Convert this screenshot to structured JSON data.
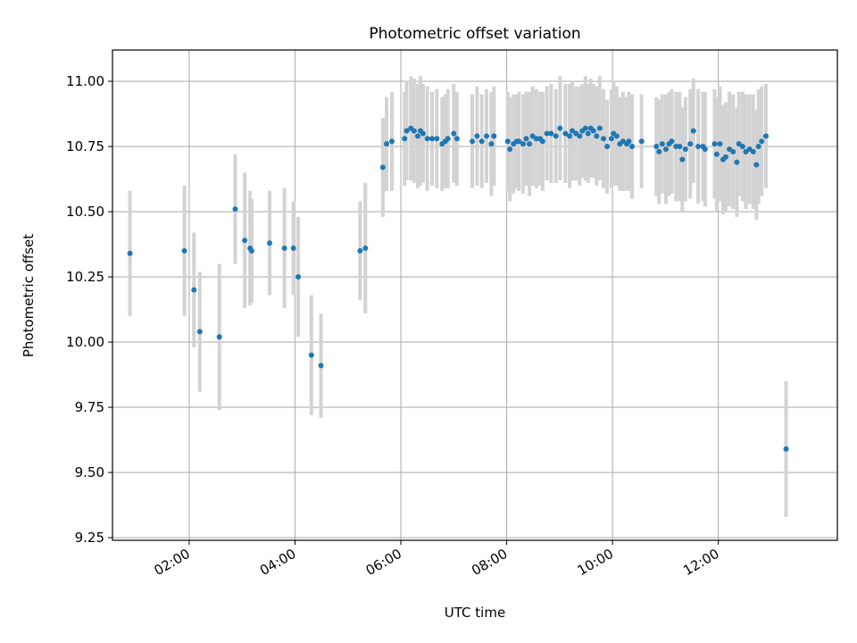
{
  "chart_data": {
    "type": "scatter",
    "title": "Photometric offset variation",
    "xlabel": "UTC time",
    "ylabel": "Photometric offset",
    "x_unit": "hours UTC",
    "xlim": [
      0.55,
      14.25
    ],
    "ylim": [
      9.24,
      11.12
    ],
    "x_ticks": [
      2,
      4,
      6,
      8,
      10,
      12
    ],
    "x_tick_labels": [
      "02:00",
      "04:00",
      "06:00",
      "08:00",
      "10:00",
      "12:00"
    ],
    "y_ticks": [
      9.25,
      9.5,
      9.75,
      10.0,
      10.25,
      10.5,
      10.75,
      11.0
    ],
    "y_tick_labels": [
      "9.25",
      "9.50",
      "9.75",
      "10.00",
      "10.25",
      "10.50",
      "10.75",
      "11.00"
    ],
    "grid": true,
    "colors": {
      "points": "#1f77b4",
      "errorbars": "#d3d3d3",
      "grid": "#b0b0b0"
    },
    "series": [
      {
        "columns": [
          "x",
          "y",
          "err"
        ],
        "points": [
          [
            0.88,
            10.34,
            0.24
          ],
          [
            1.91,
            10.35,
            0.25
          ],
          [
            2.09,
            10.2,
            0.22
          ],
          [
            2.2,
            10.04,
            0.23
          ],
          [
            2.57,
            10.02,
            0.28
          ],
          [
            2.87,
            10.51,
            0.21
          ],
          [
            3.05,
            10.39,
            0.26
          ],
          [
            3.15,
            10.36,
            0.22
          ],
          [
            3.18,
            10.35,
            0.2
          ],
          [
            3.52,
            10.38,
            0.2
          ],
          [
            3.8,
            10.36,
            0.23
          ],
          [
            3.97,
            10.36,
            0.18
          ],
          [
            4.06,
            10.25,
            0.23
          ],
          [
            4.31,
            9.95,
            0.23
          ],
          [
            4.49,
            9.91,
            0.2
          ],
          [
            5.23,
            10.35,
            0.19
          ],
          [
            5.33,
            10.36,
            0.25
          ],
          [
            5.66,
            10.67,
            0.19
          ],
          [
            5.73,
            10.76,
            0.18
          ],
          [
            5.83,
            10.77,
            0.19
          ],
          [
            6.07,
            10.78,
            0.18
          ],
          [
            6.11,
            10.81,
            0.19
          ],
          [
            6.19,
            10.82,
            0.2
          ],
          [
            6.25,
            10.81,
            0.2
          ],
          [
            6.32,
            10.79,
            0.2
          ],
          [
            6.37,
            10.81,
            0.21
          ],
          [
            6.42,
            10.8,
            0.19
          ],
          [
            6.5,
            10.78,
            0.2
          ],
          [
            6.59,
            10.78,
            0.18
          ],
          [
            6.68,
            10.78,
            0.19
          ],
          [
            6.78,
            10.76,
            0.18
          ],
          [
            6.84,
            10.77,
            0.18
          ],
          [
            6.89,
            10.78,
            0.19
          ],
          [
            7.0,
            10.8,
            0.19
          ],
          [
            7.06,
            10.78,
            0.18
          ],
          [
            7.35,
            10.77,
            0.18
          ],
          [
            7.44,
            10.79,
            0.19
          ],
          [
            7.53,
            10.77,
            0.18
          ],
          [
            7.62,
            10.79,
            0.18
          ],
          [
            7.71,
            10.76,
            0.2
          ],
          [
            7.76,
            10.79,
            0.19
          ],
          [
            8.02,
            10.77,
            0.19
          ],
          [
            8.06,
            10.74,
            0.2
          ],
          [
            8.13,
            10.76,
            0.19
          ],
          [
            8.19,
            10.77,
            0.18
          ],
          [
            8.23,
            10.77,
            0.19
          ],
          [
            8.31,
            10.76,
            0.19
          ],
          [
            8.37,
            10.78,
            0.18
          ],
          [
            8.43,
            10.76,
            0.2
          ],
          [
            8.49,
            10.79,
            0.19
          ],
          [
            8.56,
            10.78,
            0.19
          ],
          [
            8.63,
            10.78,
            0.18
          ],
          [
            8.68,
            10.77,
            0.19
          ],
          [
            8.76,
            10.8,
            0.18
          ],
          [
            8.84,
            10.8,
            0.19
          ],
          [
            8.93,
            10.79,
            0.18
          ],
          [
            9.01,
            10.82,
            0.2
          ],
          [
            9.11,
            10.8,
            0.19
          ],
          [
            9.19,
            10.79,
            0.2
          ],
          [
            9.24,
            10.81,
            0.19
          ],
          [
            9.31,
            10.8,
            0.18
          ],
          [
            9.38,
            10.79,
            0.19
          ],
          [
            9.43,
            10.81,
            0.18
          ],
          [
            9.49,
            10.82,
            0.2
          ],
          [
            9.54,
            10.8,
            0.19
          ],
          [
            9.59,
            10.82,
            0.19
          ],
          [
            9.64,
            10.81,
            0.18
          ],
          [
            9.7,
            10.79,
            0.19
          ],
          [
            9.76,
            10.82,
            0.2
          ],
          [
            9.83,
            10.78,
            0.19
          ],
          [
            9.9,
            10.75,
            0.18
          ],
          [
            9.98,
            10.78,
            0.19
          ],
          [
            10.02,
            10.8,
            0.2
          ],
          [
            10.08,
            10.79,
            0.19
          ],
          [
            10.14,
            10.76,
            0.18
          ],
          [
            10.2,
            10.77,
            0.19
          ],
          [
            10.27,
            10.76,
            0.18
          ],
          [
            10.31,
            10.77,
            0.19
          ],
          [
            10.37,
            10.75,
            0.2
          ],
          [
            10.55,
            10.77,
            0.18
          ],
          [
            10.83,
            10.75,
            0.19
          ],
          [
            10.88,
            10.73,
            0.2
          ],
          [
            10.94,
            10.76,
            0.19
          ],
          [
            11.01,
            10.74,
            0.21
          ],
          [
            11.07,
            10.76,
            0.2
          ],
          [
            11.12,
            10.77,
            0.2
          ],
          [
            11.2,
            10.75,
            0.21
          ],
          [
            11.27,
            10.75,
            0.21
          ],
          [
            11.32,
            10.7,
            0.2
          ],
          [
            11.38,
            10.74,
            0.2
          ],
          [
            11.47,
            10.76,
            0.21
          ],
          [
            11.53,
            10.81,
            0.2
          ],
          [
            11.62,
            10.75,
            0.22
          ],
          [
            11.71,
            10.75,
            0.21
          ],
          [
            11.75,
            10.74,
            0.22
          ],
          [
            11.93,
            10.76,
            0.21
          ],
          [
            11.97,
            10.72,
            0.22
          ],
          [
            12.03,
            10.76,
            0.22
          ],
          [
            12.09,
            10.7,
            0.21
          ],
          [
            12.14,
            10.71,
            0.21
          ],
          [
            12.21,
            10.74,
            0.22
          ],
          [
            12.28,
            10.73,
            0.22
          ],
          [
            12.35,
            10.69,
            0.21
          ],
          [
            12.39,
            10.76,
            0.2
          ],
          [
            12.46,
            10.75,
            0.21
          ],
          [
            12.52,
            10.73,
            0.22
          ],
          [
            12.59,
            10.74,
            0.21
          ],
          [
            12.66,
            10.73,
            0.22
          ],
          [
            12.72,
            10.68,
            0.21
          ],
          [
            12.76,
            10.75,
            0.22
          ],
          [
            12.82,
            10.77,
            0.21
          ],
          [
            12.9,
            10.79,
            0.2
          ],
          [
            13.28,
            9.59,
            0.26
          ]
        ]
      }
    ]
  }
}
